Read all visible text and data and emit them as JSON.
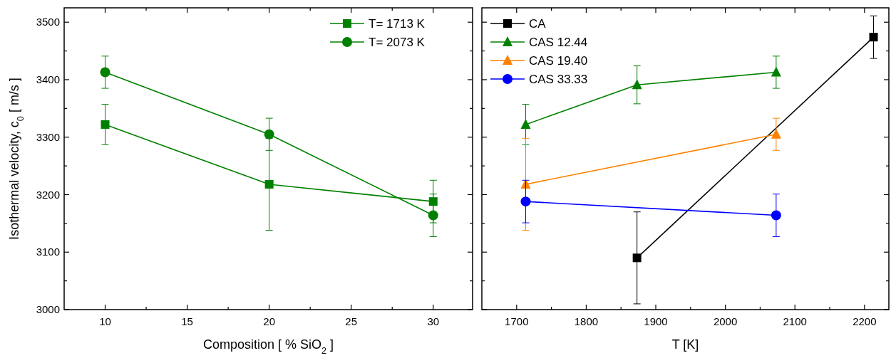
{
  "chart_data": [
    {
      "type": "line",
      "xlabel": "Composition [ % SiO$_{2}$ ]",
      "ylabel": "Isothermal velocity, c$_{0}$ [ m/s ]",
      "xlim": [
        7.5,
        32.4
      ],
      "xticks": [
        10,
        {
          "value": 12.5,
          "label": null
        },
        15,
        {
          "value": 17.5,
          "label": null
        },
        20,
        {
          "value": 22.5,
          "label": null
        },
        25,
        {
          "value": 27.5,
          "label": null
        },
        30
      ],
      "ylim": [
        3000,
        3525
      ],
      "yticks": [
        3000,
        {
          "value": 3050,
          "label": null
        },
        3100,
        {
          "value": 3150,
          "label": null
        },
        3200,
        {
          "value": 3250,
          "label": null
        },
        3300,
        {
          "value": 3350,
          "label": null
        },
        3400,
        {
          "value": 3450,
          "label": null
        },
        3500
      ],
      "legend": "top right",
      "x": [
        10,
        20,
        30
      ],
      "series": [
        {
          "name": "T= 1713 K",
          "color": "#008000",
          "marker": "square",
          "values": [
            3322,
            3218,
            3188
          ],
          "errors": [
            35,
            80,
            37
          ]
        },
        {
          "name": "T= 2073 K",
          "color": "#008000",
          "marker": "circle",
          "values": [
            3413,
            3305,
            3164
          ],
          "errors": [
            28,
            28,
            37
          ]
        }
      ]
    },
    {
      "type": "line",
      "xlabel": "T [K]",
      "xlim": [
        1650,
        2235
      ],
      "xticks": [
        1700,
        {
          "value": 1750,
          "label": null
        },
        1800,
        {
          "value": 1850,
          "label": null
        },
        1900,
        {
          "value": 1950,
          "label": null
        },
        2000,
        {
          "value": 2050,
          "label": null
        },
        2100,
        {
          "value": 2150,
          "label": null
        },
        2200
      ],
      "ylim": [
        3000,
        3525
      ],
      "yticks": [
        3000,
        {
          "value": 3050,
          "label": null
        },
        3100,
        {
          "value": 3150,
          "label": null
        },
        3200,
        {
          "value": 3250,
          "label": null
        },
        3300,
        {
          "value": 3350,
          "label": null
        },
        3400,
        {
          "value": 3450,
          "label": null
        },
        3500
      ],
      "tick_labels": "x",
      "legend": "top left",
      "series": [
        {
          "name": "CA",
          "color": "#000000",
          "marker": "square",
          "x": [
            1873,
            2213
          ],
          "values": [
            3090,
            3474
          ],
          "errors": [
            80,
            37
          ]
        },
        {
          "name": "CAS 12.44",
          "color": "#008000",
          "marker": "triangle",
          "x": [
            1713,
            1873,
            2073
          ],
          "values": [
            3322,
            3391,
            3413
          ],
          "errors": [
            35,
            33,
            28
          ]
        },
        {
          "name": "CAS 19.40",
          "color": "#ff8000",
          "marker": "triangle",
          "x": [
            1713,
            2073
          ],
          "values": [
            3218,
            3305
          ],
          "errors": [
            80,
            28
          ]
        },
        {
          "name": "CAS 33.33",
          "color": "#0000ff",
          "marker": "circle",
          "x": [
            1713,
            2073
          ],
          "values": [
            3188,
            3164
          ],
          "errors": [
            37,
            37
          ]
        }
      ]
    }
  ]
}
